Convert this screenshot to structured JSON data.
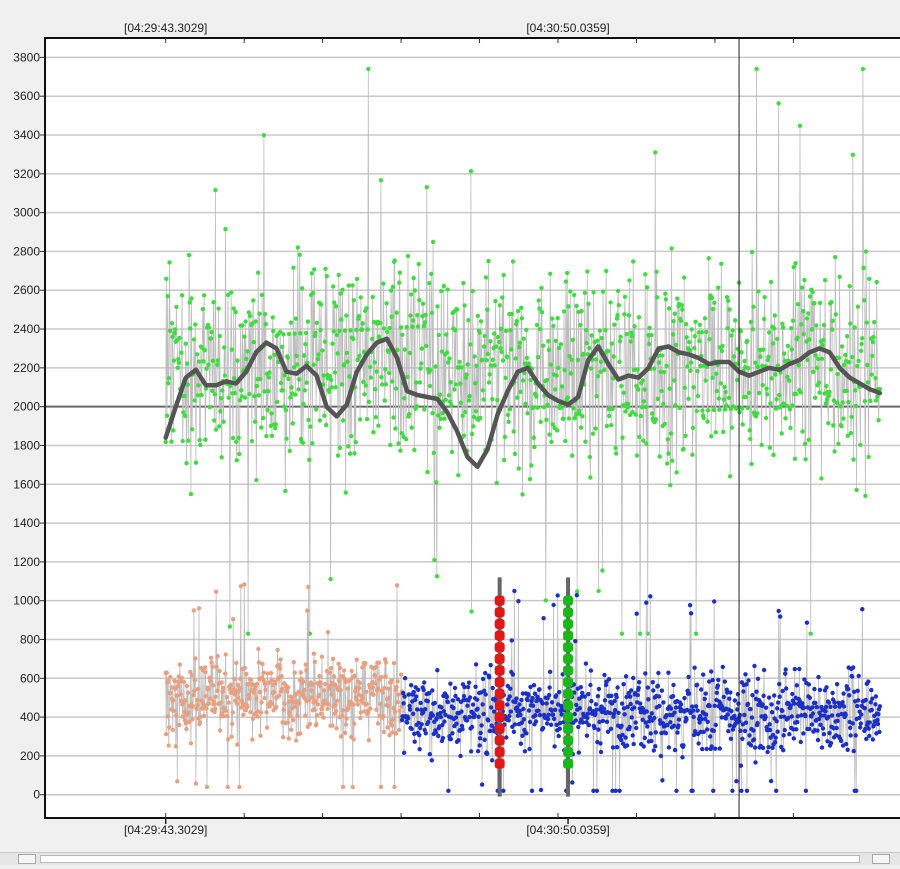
{
  "chart_data": {
    "type": "scatter",
    "title": "",
    "xlabel": "",
    "ylabel": "",
    "x_tick_labels_top": [
      "[04:29:43.3029]",
      "[04:30:50.0359]"
    ],
    "x_tick_labels_bottom": [
      "[04:29:43.3029]",
      "[04:30:50.0359]"
    ],
    "y_ticks": [
      0,
      200,
      400,
      600,
      800,
      1000,
      1200,
      1400,
      1600,
      1800,
      2000,
      2200,
      2400,
      2600,
      2800,
      3000,
      3200,
      3400,
      3600,
      3800
    ],
    "ylim": [
      -120,
      3900
    ],
    "xlim": [
      -12,
      73
    ],
    "reference_line_y": 2000,
    "cursor_x": 57,
    "grid": "horizontal",
    "series": [
      {
        "color": "#3fdc3f",
        "x_range": [
          0,
          71
        ],
        "y_mean": 2200,
        "y_spread": 600,
        "outlier_max": 3740,
        "outlier_min": 830
      },
      {
        "color": "#e8a080",
        "x_range": [
          0,
          23.5
        ],
        "y_mean": 500,
        "y_spread": 220,
        "outlier_max": 1090,
        "outlier_min": 40
      },
      {
        "color": "#1a30c8",
        "x_range": [
          23.5,
          71
        ],
        "y_mean": 420,
        "y_spread": 230,
        "outlier_max": 1050,
        "outlier_min": 20
      }
    ],
    "moving_average": {
      "color": "#555555",
      "x": [
        0,
        1,
        2,
        3,
        4,
        5,
        6,
        7,
        8,
        9,
        10,
        11,
        12,
        13,
        14,
        15,
        16,
        17,
        18,
        19,
        20,
        21,
        22,
        23,
        24,
        25,
        26,
        27,
        28,
        29,
        30,
        31,
        32,
        33,
        34,
        35,
        36,
        37,
        38,
        39,
        40,
        41,
        42,
        43,
        44,
        45,
        46,
        47,
        48,
        49,
        50,
        51,
        52,
        53,
        54,
        55,
        56,
        57,
        58,
        59,
        60,
        61,
        62,
        63,
        64,
        65,
        66,
        67,
        68,
        69,
        70,
        71
      ],
      "y": [
        1840,
        2000,
        2150,
        2190,
        2110,
        2110,
        2130,
        2120,
        2180,
        2280,
        2330,
        2300,
        2180,
        2170,
        2210,
        2160,
        2000,
        1950,
        2010,
        2180,
        2270,
        2330,
        2350,
        2250,
        2080,
        2060,
        2050,
        2040,
        1970,
        1870,
        1740,
        1690,
        1780,
        1960,
        2080,
        2180,
        2200,
        2120,
        2060,
        2030,
        2010,
        2050,
        2240,
        2310,
        2220,
        2140,
        2160,
        2150,
        2200,
        2300,
        2310,
        2280,
        2270,
        2250,
        2220,
        2230,
        2230,
        2180,
        2160,
        2180,
        2200,
        2190,
        2220,
        2240,
        2280,
        2300,
        2280,
        2200,
        2150,
        2120,
        2090,
        2070
      ]
    },
    "markers": [
      {
        "color": "#e01818",
        "x": 33.2,
        "y_range": [
          -10,
          1120
        ],
        "points": [
          1000,
          940,
          880,
          820,
          760,
          700,
          640,
          580,
          520,
          460,
          400,
          340,
          280,
          220,
          160
        ]
      },
      {
        "color": "#18b818",
        "x": 40,
        "y_range": [
          -10,
          1120
        ],
        "points": [
          1000,
          940,
          880,
          820,
          760,
          700,
          640,
          580,
          520,
          460,
          400,
          340,
          280,
          220,
          160
        ]
      }
    ]
  }
}
